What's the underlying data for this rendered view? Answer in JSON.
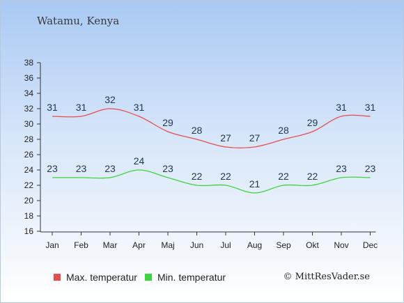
{
  "colors": {
    "max": "#e84d4d",
    "min": "#3ed43e"
  },
  "chart_data": {
    "type": "line",
    "title": "Watamu, Kenya",
    "categories": [
      "Jan",
      "Feb",
      "Mar",
      "Apr",
      "Maj",
      "Jun",
      "Jul",
      "Aug",
      "Sep",
      "Okt",
      "Nov",
      "Dec"
    ],
    "series": [
      {
        "name": "Max. temperatur",
        "values": [
          31,
          31,
          32,
          31,
          29,
          28,
          27,
          27,
          28,
          29,
          31,
          31
        ]
      },
      {
        "name": "Min. temperatur",
        "values": [
          23,
          23,
          23,
          24,
          23,
          22,
          22,
          21,
          22,
          22,
          23,
          23
        ]
      }
    ],
    "yticks": [
      16,
      18,
      20,
      22,
      24,
      26,
      28,
      30,
      32,
      34,
      36,
      38
    ],
    "ylim": [
      16,
      38
    ],
    "grid": false,
    "legend_position": "bottom-left"
  },
  "footer": {
    "copyright": "© MittResVader.se"
  }
}
